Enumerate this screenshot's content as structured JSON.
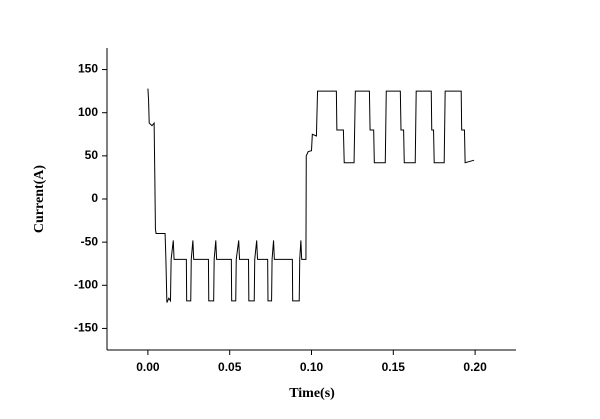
{
  "chart_data": {
    "type": "line",
    "x_label": "Time(s)",
    "y_label": "Current(A)",
    "xlim": [
      -0.025,
      0.225
    ],
    "xticks": [
      {
        "value": 0,
        "label": "0.00"
      },
      {
        "value": 0.05,
        "label": "0.05"
      },
      {
        "value": 0.1,
        "label": "0.10"
      },
      {
        "value": 0.15,
        "label": "0.15"
      },
      {
        "value": 0.2,
        "label": "0.20"
      }
    ],
    "ylim": [
      -175,
      175
    ],
    "yticks": [
      -150,
      -100,
      -50,
      0,
      50,
      100,
      150
    ],
    "series": [
      {
        "color": "#000000",
        "x": [
          0.0,
          0.0004,
          0.0008,
          0.0025,
          0.0038,
          0.0042,
          0.0046,
          0.005,
          0.0105,
          0.011,
          0.0116,
          0.0128,
          0.0138,
          0.0142,
          0.0155,
          0.016,
          0.0235,
          0.0237,
          0.0262,
          0.0265,
          0.0275,
          0.028,
          0.037,
          0.0372,
          0.0402,
          0.0405,
          0.0415,
          0.042,
          0.051,
          0.0512,
          0.0537,
          0.054,
          0.0555,
          0.056,
          0.0615,
          0.0617,
          0.065,
          0.0653,
          0.0665,
          0.067,
          0.0732,
          0.0734,
          0.0756,
          0.0759,
          0.0768,
          0.0773,
          0.0883,
          0.0885,
          0.0925,
          0.0928,
          0.0935,
          0.094,
          0.0966,
          0.0968,
          0.098,
          0.1,
          0.1005,
          0.103,
          0.1037,
          0.1152,
          0.1155,
          0.1195,
          0.12,
          0.126,
          0.1268,
          0.1354,
          0.1358,
          0.138,
          0.1384,
          0.1451,
          0.1457,
          0.1543,
          0.1547,
          0.1563,
          0.1567,
          0.1634,
          0.164,
          0.1732,
          0.1735,
          0.1746,
          0.175,
          0.1811,
          0.1817,
          0.1915,
          0.1918,
          0.1935,
          0.1939,
          0.1994
        ],
        "values": [
          128,
          115,
          88,
          85,
          88,
          30,
          -35,
          -40,
          -40,
          -70,
          -120,
          -115,
          -118,
          -70,
          -48,
          -70,
          -70,
          -118,
          -118,
          -70,
          -48,
          -70,
          -70,
          -118,
          -118,
          -70,
          -48,
          -70,
          -70,
          -118,
          -118,
          -70,
          -48,
          -70,
          -70,
          -118,
          -118,
          -70,
          -48,
          -70,
          -70,
          -118,
          -118,
          -70,
          -48,
          -70,
          -70,
          -118,
          -118,
          -70,
          -48,
          -70,
          -70,
          50,
          55,
          56,
          75,
          73,
          125,
          125,
          80,
          80,
          42,
          42,
          125,
          125,
          80,
          80,
          42,
          42,
          125,
          125,
          80,
          80,
          42,
          42,
          125,
          125,
          80,
          80,
          42,
          42,
          125,
          125,
          80,
          80,
          42,
          45
        ]
      }
    ]
  }
}
